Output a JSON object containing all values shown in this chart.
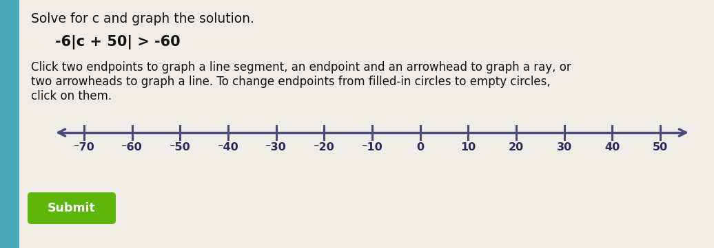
{
  "title_line1": "Solve for c and graph the solution.",
  "equation": "-6|c + 50| > -60",
  "instruction_line1": "Click two endpoints to graph a line segment, an endpoint and an arrowhead to graph a ray, or",
  "instruction_line2": "two arrowheads to graph a line. To change endpoints from filled-in circles to empty circles,",
  "instruction_line3": "click on them.",
  "submit_label": "Submit",
  "number_line_ticks": [
    -70,
    -60,
    -50,
    -40,
    -30,
    -20,
    -10,
    0,
    10,
    20,
    30,
    40,
    50
  ],
  "number_line_min": -76,
  "number_line_max": 56,
  "bg_color_left": "#4aa8b8",
  "bg_color_main": "#dedad4",
  "panel_color": "#f0ede8",
  "axis_color": "#4a4a7a",
  "tick_color": "#4a4a7a",
  "label_color": "#2a2a5a",
  "title_color": "#111111",
  "instr_color": "#111111",
  "submit_bg": "#5db50a",
  "submit_fg": "#ffffff",
  "title_fontsize": 13.5,
  "equation_fontsize": 15,
  "instruction_fontsize": 12,
  "tick_label_fontsize": 11.5
}
